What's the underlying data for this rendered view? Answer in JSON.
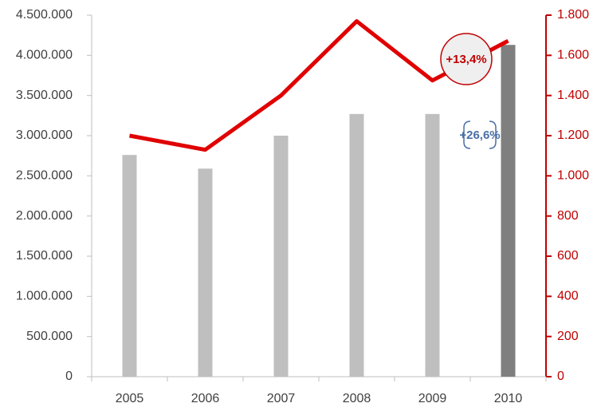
{
  "chart_data": {
    "type": "bar",
    "categories": [
      "2005",
      "2006",
      "2007",
      "2008",
      "2009",
      "2010"
    ],
    "series": [
      {
        "type": "bar",
        "colors": [
          "#bfbfbf",
          "#bfbfbf",
          "#bfbfbf",
          "#bfbfbf",
          "#bfbfbf",
          "#7f7f7f"
        ],
        "values": [
          2760000,
          2590000,
          3000000,
          3270000,
          3270000,
          4130000
        ]
      },
      {
        "type": "line",
        "axis": "y2",
        "color": "#e00000",
        "values": [
          1200,
          1130,
          1400,
          1770,
          1475,
          1672
        ]
      }
    ],
    "ylim": [
      0,
      4500000
    ],
    "yticks": [
      {
        "value": 0,
        "label": "0"
      },
      {
        "value": 500000,
        "label": "500.000"
      },
      {
        "value": 1000000,
        "label": "1.000.000"
      },
      {
        "value": 1500000,
        "label": "1.500.000"
      },
      {
        "value": 2000000,
        "label": "2.000.000"
      },
      {
        "value": 2500000,
        "label": "2.500.000"
      },
      {
        "value": 3000000,
        "label": "3.000.000"
      },
      {
        "value": 3500000,
        "label": "3.500.000"
      },
      {
        "value": 4000000,
        "label": "4.000.000"
      },
      {
        "value": 4500000,
        "label": "4.500.000"
      }
    ],
    "y2lim": [
      0,
      1800
    ],
    "y2ticks": [
      0,
      200,
      400,
      600,
      800,
      {
        "value": 1000,
        "label": "1.000"
      },
      {
        "value": 1200,
        "label": "1.200"
      },
      {
        "value": 1400,
        "label": "1.400"
      },
      {
        "value": 1600,
        "label": "1.600"
      },
      {
        "value": 1800,
        "label": "1.800"
      }
    ],
    "annotations": [
      "+13,4%",
      "+26,6%"
    ]
  }
}
